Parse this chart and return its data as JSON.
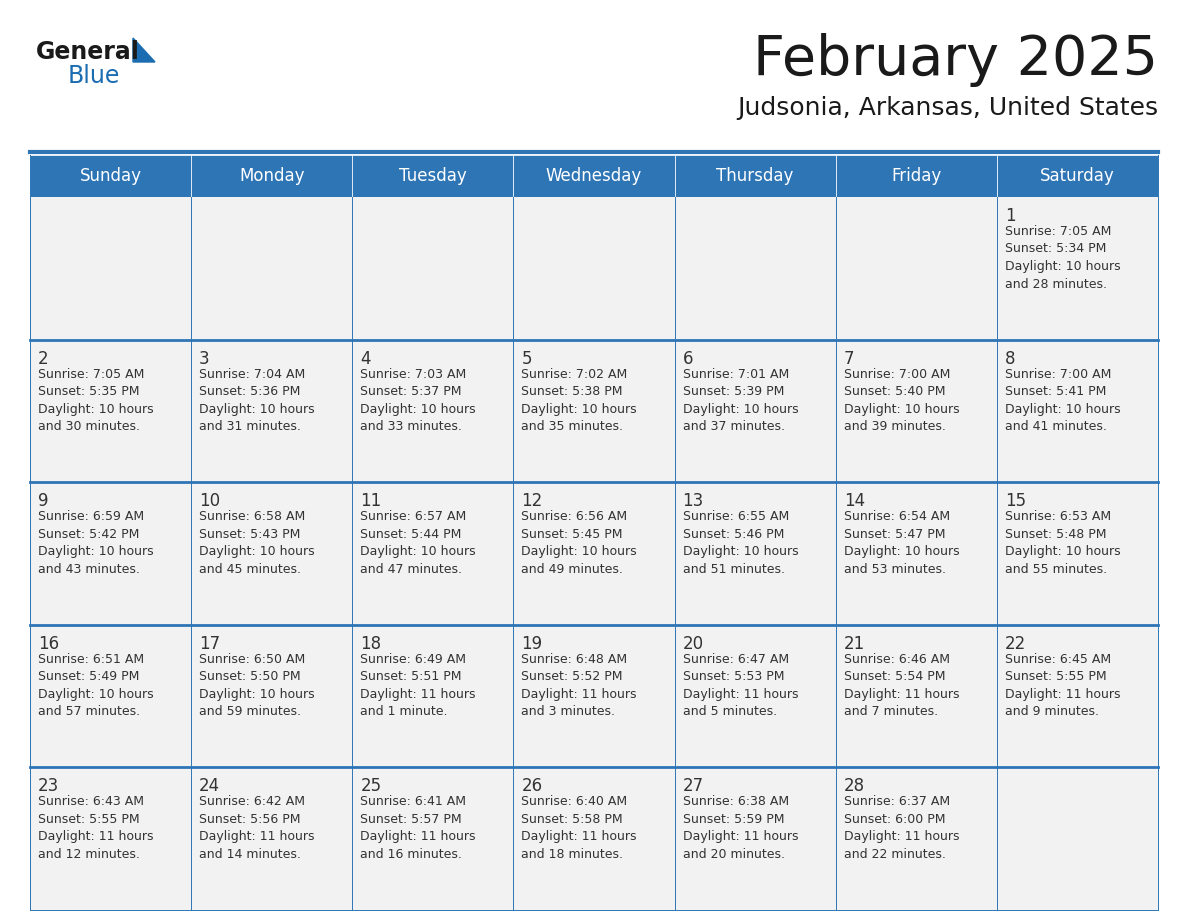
{
  "title": "February 2025",
  "subtitle": "Judsonia, Arkansas, United States",
  "header_bg": "#2E75B6",
  "header_text": "#FFFFFF",
  "cell_bg_white": "#FFFFFF",
  "cell_bg_light": "#F2F2F2",
  "border_color": "#2E75B6",
  "text_color": "#333333",
  "logo_black": "#1a1a1a",
  "logo_blue": "#1B6CB0",
  "days_of_week": [
    "Sunday",
    "Monday",
    "Tuesday",
    "Wednesday",
    "Thursday",
    "Friday",
    "Saturday"
  ],
  "weeks": [
    [
      {
        "day": "",
        "info": ""
      },
      {
        "day": "",
        "info": ""
      },
      {
        "day": "",
        "info": ""
      },
      {
        "day": "",
        "info": ""
      },
      {
        "day": "",
        "info": ""
      },
      {
        "day": "",
        "info": ""
      },
      {
        "day": "1",
        "info": "Sunrise: 7:05 AM\nSunset: 5:34 PM\nDaylight: 10 hours\nand 28 minutes."
      }
    ],
    [
      {
        "day": "2",
        "info": "Sunrise: 7:05 AM\nSunset: 5:35 PM\nDaylight: 10 hours\nand 30 minutes."
      },
      {
        "day": "3",
        "info": "Sunrise: 7:04 AM\nSunset: 5:36 PM\nDaylight: 10 hours\nand 31 minutes."
      },
      {
        "day": "4",
        "info": "Sunrise: 7:03 AM\nSunset: 5:37 PM\nDaylight: 10 hours\nand 33 minutes."
      },
      {
        "day": "5",
        "info": "Sunrise: 7:02 AM\nSunset: 5:38 PM\nDaylight: 10 hours\nand 35 minutes."
      },
      {
        "day": "6",
        "info": "Sunrise: 7:01 AM\nSunset: 5:39 PM\nDaylight: 10 hours\nand 37 minutes."
      },
      {
        "day": "7",
        "info": "Sunrise: 7:00 AM\nSunset: 5:40 PM\nDaylight: 10 hours\nand 39 minutes."
      },
      {
        "day": "8",
        "info": "Sunrise: 7:00 AM\nSunset: 5:41 PM\nDaylight: 10 hours\nand 41 minutes."
      }
    ],
    [
      {
        "day": "9",
        "info": "Sunrise: 6:59 AM\nSunset: 5:42 PM\nDaylight: 10 hours\nand 43 minutes."
      },
      {
        "day": "10",
        "info": "Sunrise: 6:58 AM\nSunset: 5:43 PM\nDaylight: 10 hours\nand 45 minutes."
      },
      {
        "day": "11",
        "info": "Sunrise: 6:57 AM\nSunset: 5:44 PM\nDaylight: 10 hours\nand 47 minutes."
      },
      {
        "day": "12",
        "info": "Sunrise: 6:56 AM\nSunset: 5:45 PM\nDaylight: 10 hours\nand 49 minutes."
      },
      {
        "day": "13",
        "info": "Sunrise: 6:55 AM\nSunset: 5:46 PM\nDaylight: 10 hours\nand 51 minutes."
      },
      {
        "day": "14",
        "info": "Sunrise: 6:54 AM\nSunset: 5:47 PM\nDaylight: 10 hours\nand 53 minutes."
      },
      {
        "day": "15",
        "info": "Sunrise: 6:53 AM\nSunset: 5:48 PM\nDaylight: 10 hours\nand 55 minutes."
      }
    ],
    [
      {
        "day": "16",
        "info": "Sunrise: 6:51 AM\nSunset: 5:49 PM\nDaylight: 10 hours\nand 57 minutes."
      },
      {
        "day": "17",
        "info": "Sunrise: 6:50 AM\nSunset: 5:50 PM\nDaylight: 10 hours\nand 59 minutes."
      },
      {
        "day": "18",
        "info": "Sunrise: 6:49 AM\nSunset: 5:51 PM\nDaylight: 11 hours\nand 1 minute."
      },
      {
        "day": "19",
        "info": "Sunrise: 6:48 AM\nSunset: 5:52 PM\nDaylight: 11 hours\nand 3 minutes."
      },
      {
        "day": "20",
        "info": "Sunrise: 6:47 AM\nSunset: 5:53 PM\nDaylight: 11 hours\nand 5 minutes."
      },
      {
        "day": "21",
        "info": "Sunrise: 6:46 AM\nSunset: 5:54 PM\nDaylight: 11 hours\nand 7 minutes."
      },
      {
        "day": "22",
        "info": "Sunrise: 6:45 AM\nSunset: 5:55 PM\nDaylight: 11 hours\nand 9 minutes."
      }
    ],
    [
      {
        "day": "23",
        "info": "Sunrise: 6:43 AM\nSunset: 5:55 PM\nDaylight: 11 hours\nand 12 minutes."
      },
      {
        "day": "24",
        "info": "Sunrise: 6:42 AM\nSunset: 5:56 PM\nDaylight: 11 hours\nand 14 minutes."
      },
      {
        "day": "25",
        "info": "Sunrise: 6:41 AM\nSunset: 5:57 PM\nDaylight: 11 hours\nand 16 minutes."
      },
      {
        "day": "26",
        "info": "Sunrise: 6:40 AM\nSunset: 5:58 PM\nDaylight: 11 hours\nand 18 minutes."
      },
      {
        "day": "27",
        "info": "Sunrise: 6:38 AM\nSunset: 5:59 PM\nDaylight: 11 hours\nand 20 minutes."
      },
      {
        "day": "28",
        "info": "Sunrise: 6:37 AM\nSunset: 6:00 PM\nDaylight: 11 hours\nand 22 minutes."
      },
      {
        "day": "",
        "info": ""
      }
    ]
  ]
}
